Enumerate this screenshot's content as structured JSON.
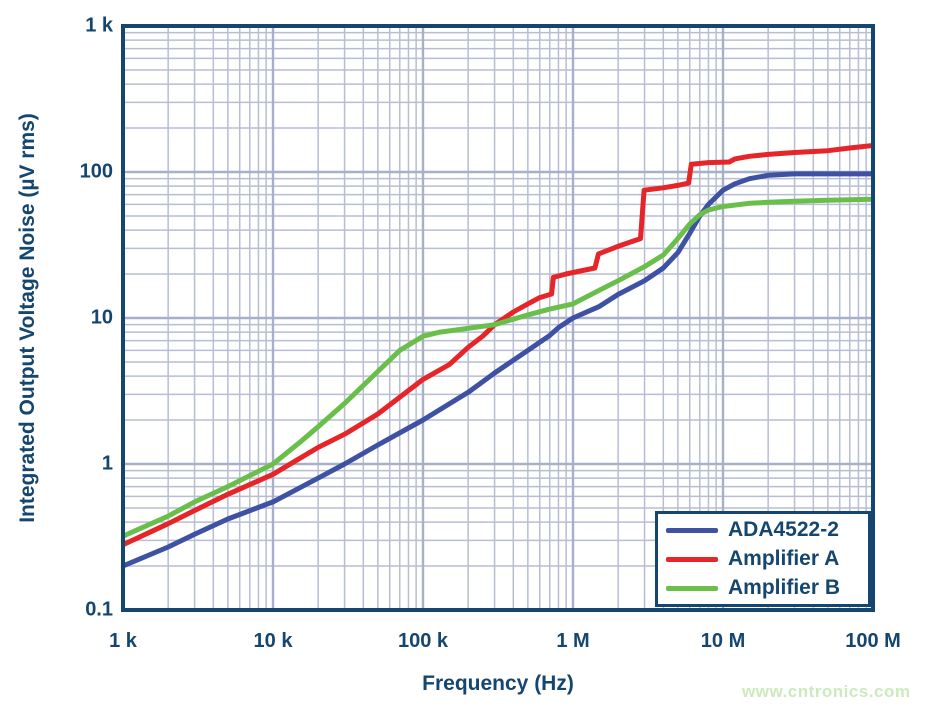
{
  "watermark": "www.cntronics.com",
  "colors": {
    "axis": "#15466f",
    "grid_minor": "#b7bed4",
    "grid_major": "#a7afc9",
    "background": "#ffffff",
    "watermark": "#cdeabc"
  },
  "chart_data": {
    "type": "line",
    "title": "",
    "xlabel": "Frequency (Hz)",
    "ylabel": "Integrated Output Voltage Noise (µV rms)",
    "x_scale": "log",
    "y_scale": "log",
    "xlim": [
      1000,
      100000000
    ],
    "ylim": [
      0.1,
      1000
    ],
    "grid": true,
    "legend_position": "bottom-right",
    "x_ticks": [
      {
        "value": 1000,
        "label": "1 k"
      },
      {
        "value": 10000,
        "label": "10 k"
      },
      {
        "value": 100000,
        "label": "100 k"
      },
      {
        "value": 1000000,
        "label": "1 M"
      },
      {
        "value": 10000000,
        "label": "10 M"
      },
      {
        "value": 100000000,
        "label": "100 M"
      }
    ],
    "y_ticks": [
      {
        "value": 1000,
        "label": "1 k"
      },
      {
        "value": 100,
        "label": "100"
      },
      {
        "value": 10,
        "label": "10"
      },
      {
        "value": 1,
        "label": "1"
      },
      {
        "value": 0.1,
        "label": "0.1"
      }
    ],
    "series": [
      {
        "name": "ADA4522-2",
        "color": "#3f51a3",
        "points": [
          [
            1000,
            0.2
          ],
          [
            2000,
            0.27
          ],
          [
            3000,
            0.33
          ],
          [
            5000,
            0.42
          ],
          [
            10000,
            0.55
          ],
          [
            20000,
            0.8
          ],
          [
            30000,
            1.0
          ],
          [
            50000,
            1.35
          ],
          [
            100000,
            2.0
          ],
          [
            200000,
            3.1
          ],
          [
            300000,
            4.2
          ],
          [
            500000,
            6.0
          ],
          [
            700000,
            7.6
          ],
          [
            800000,
            8.6
          ],
          [
            1000000,
            10
          ],
          [
            1500000,
            12
          ],
          [
            2000000,
            14.5
          ],
          [
            3000000,
            18
          ],
          [
            4000000,
            22
          ],
          [
            5000000,
            28
          ],
          [
            6000000,
            38
          ],
          [
            7000000,
            50
          ],
          [
            8000000,
            60
          ],
          [
            10000000,
            75
          ],
          [
            12000000,
            83
          ],
          [
            15000000,
            90
          ],
          [
            20000000,
            95
          ],
          [
            30000000,
            97
          ],
          [
            50000000,
            97
          ],
          [
            100000000,
            97
          ]
        ]
      },
      {
        "name": "Amplifier A",
        "color": "#e62529",
        "points": [
          [
            1000,
            0.28
          ],
          [
            2000,
            0.39
          ],
          [
            3000,
            0.48
          ],
          [
            5000,
            0.62
          ],
          [
            10000,
            0.85
          ],
          [
            20000,
            1.3
          ],
          [
            30000,
            1.6
          ],
          [
            50000,
            2.2
          ],
          [
            100000,
            3.8
          ],
          [
            150000,
            4.8
          ],
          [
            200000,
            6.3
          ],
          [
            250000,
            7.5
          ],
          [
            300000,
            9.0
          ],
          [
            400000,
            11.0
          ],
          [
            500000,
            12.5
          ],
          [
            600000,
            13.8
          ],
          [
            720000,
            14.6
          ],
          [
            740000,
            19
          ],
          [
            900000,
            20
          ],
          [
            1000000,
            20.5
          ],
          [
            1400000,
            22
          ],
          [
            1480000,
            27.5
          ],
          [
            2000000,
            31
          ],
          [
            2500000,
            33.5
          ],
          [
            2820000,
            35
          ],
          [
            2980000,
            75
          ],
          [
            4000000,
            78
          ],
          [
            5000000,
            81
          ],
          [
            5900000,
            84
          ],
          [
            6150000,
            113
          ],
          [
            8000000,
            116
          ],
          [
            11000000,
            117
          ],
          [
            12000000,
            123
          ],
          [
            15000000,
            128
          ],
          [
            20000000,
            132
          ],
          [
            30000000,
            136
          ],
          [
            50000000,
            140
          ],
          [
            70000000,
            146
          ],
          [
            100000000,
            152
          ]
        ]
      },
      {
        "name": "Amplifier B",
        "color": "#6abf4b",
        "points": [
          [
            1000,
            0.32
          ],
          [
            2000,
            0.44
          ],
          [
            3000,
            0.55
          ],
          [
            5000,
            0.7
          ],
          [
            10000,
            1.0
          ],
          [
            15000,
            1.4
          ],
          [
            20000,
            1.8
          ],
          [
            30000,
            2.6
          ],
          [
            50000,
            4.3
          ],
          [
            70000,
            6.0
          ],
          [
            100000,
            7.5
          ],
          [
            130000,
            8.0
          ],
          [
            200000,
            8.5
          ],
          [
            300000,
            9.0
          ],
          [
            500000,
            10.5
          ],
          [
            700000,
            11.5
          ],
          [
            1000000,
            12.5
          ],
          [
            1500000,
            15.5
          ],
          [
            2000000,
            18
          ],
          [
            3000000,
            22.5
          ],
          [
            4000000,
            27
          ],
          [
            5000000,
            35
          ],
          [
            6000000,
            44
          ],
          [
            7000000,
            51
          ],
          [
            8000000,
            55
          ],
          [
            10000000,
            58
          ],
          [
            15000000,
            61
          ],
          [
            20000000,
            62
          ],
          [
            30000000,
            63
          ],
          [
            50000000,
            64
          ],
          [
            100000000,
            65
          ]
        ]
      }
    ]
  }
}
